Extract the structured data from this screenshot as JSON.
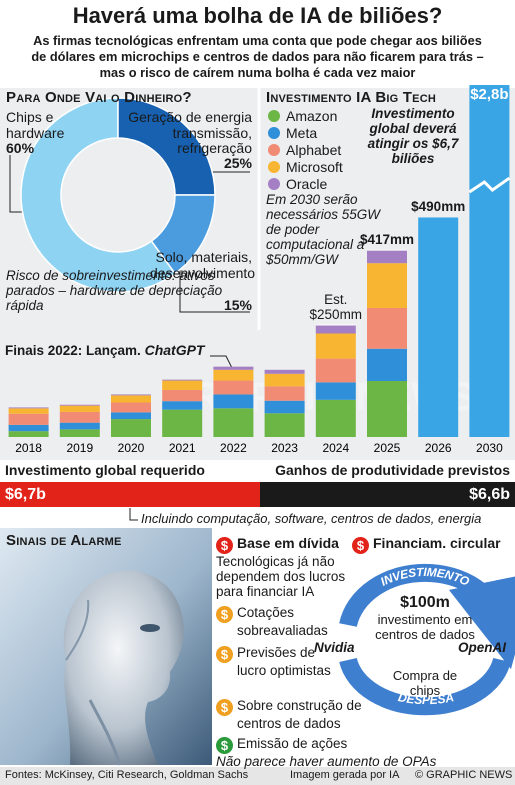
{
  "header": {
    "title": "Haverá uma bolha de IA de biliões?",
    "subtitle": [
      "As firmas tecnológicas enfrentam uma conta que pode chegar aos biliões",
      "de dólares em microchips e centros de dados para não ficarem para trás –",
      "mas o risco de caírem numa bolha é cada vez maior"
    ]
  },
  "chart_data": [
    {
      "type": "donut",
      "title": "Para Onde Vai o Dinheiro?",
      "categories": [
        "Chips e hardware",
        "Geração de energia transmissão, refrigeração",
        "Solo, materiais, desenvolvimento"
      ],
      "values": [
        60,
        25,
        15
      ],
      "value_labels": [
        "60%",
        "25%",
        "15%"
      ],
      "colors": [
        "#8fd3f3",
        "#1761b0",
        "#4b9bdf"
      ],
      "annotation": "Risco de sobreinvestimento: ativos parados – hardware de depreciação rápida"
    },
    {
      "type": "stacked-bar",
      "title": "Investimento IA Big Tech",
      "categories": [
        "2018",
        "2019",
        "2020",
        "2021",
        "2022",
        "2023",
        "2024",
        "2025",
        "2026",
        "2030"
      ],
      "series": [
        {
          "name": "Amazon",
          "color": "#6cb645",
          "values": [
            13,
            17,
            40,
            61,
            64,
            53,
            83,
            125,
            null,
            null
          ]
        },
        {
          "name": "Meta",
          "color": "#2f8fd8",
          "values": [
            14,
            15,
            15,
            19,
            31,
            28,
            39,
            72,
            null,
            null
          ]
        },
        {
          "name": "Alphabet",
          "color": "#f28b74",
          "values": [
            25,
            24,
            22,
            25,
            31,
            32,
            53,
            91,
            null,
            null
          ]
        },
        {
          "name": "Microsoft",
          "color": "#f7b531",
          "values": [
            12,
            14,
            16,
            21,
            24,
            28,
            56,
            100,
            null,
            null
          ]
        },
        {
          "name": "Oracle",
          "color": "#a57fc3",
          "values": [
            2,
            2,
            2,
            2,
            7,
            9,
            19,
            29,
            null,
            null
          ]
        }
      ],
      "totals": {
        "color": "#3aa5e5",
        "values": [
          null,
          null,
          null,
          null,
          null,
          null,
          250,
          417,
          490,
          2800
        ],
        "value_labels": [
          null,
          null,
          null,
          null,
          null,
          null,
          "Est. $250mm",
          "$417mm",
          "$490mm",
          "$2,8b"
        ]
      },
      "annotations": [
        "Investimento global deverá atingir os $6,7 biliões",
        "Em 2030 serão necessários 55GW de poder computacional a $50mm/GW"
      ],
      "event": {
        "text": "Finais 2022: Lançam.",
        "name": "ChatGPT"
      }
    }
  ],
  "comparison": {
    "left": {
      "label": "Investimento global requerido",
      "value": "$6,7b"
    },
    "right": {
      "label": "Ganhos de produtividade previstos",
      "value": "$6,6b"
    },
    "note": "Incluindo computação, software, centros de dados, energia"
  },
  "alarm": {
    "title": "Sinais de Alarme",
    "items": [
      {
        "icon": "$",
        "title": "Base em dívida",
        "text": "Tecnológicas já não dependem dos lucros para financiar IA"
      },
      {
        "icon": "$",
        "title": "Cotações sobreavaliadas"
      },
      {
        "icon": "$",
        "title": "Previsões de lucro optimistas"
      },
      {
        "icon": "$",
        "title": "Sobre construção de centros de dados"
      },
      {
        "icon": "$",
        "title": "Emissão de ações",
        "text": "Não parece haver aumento de OPAs"
      }
    ],
    "circular": {
      "icon": "$",
      "title": "Financiam. circular",
      "top": "INVESTIMENTO",
      "bottom": "DESPESA",
      "center_value": "$100m",
      "center_text": "investimento em centros de dados",
      "left": "Nvidia",
      "right": "OpenAI",
      "lower": "Compra de chips"
    }
  },
  "footer": {
    "sources": "Fontes: McKinsey, Citi Research, Goldman Sachs",
    "image_note": "Imagem gerada por IA",
    "credit": "© GRAPHIC NEWS",
    "watermark": "GRAPHIC NEWS"
  }
}
